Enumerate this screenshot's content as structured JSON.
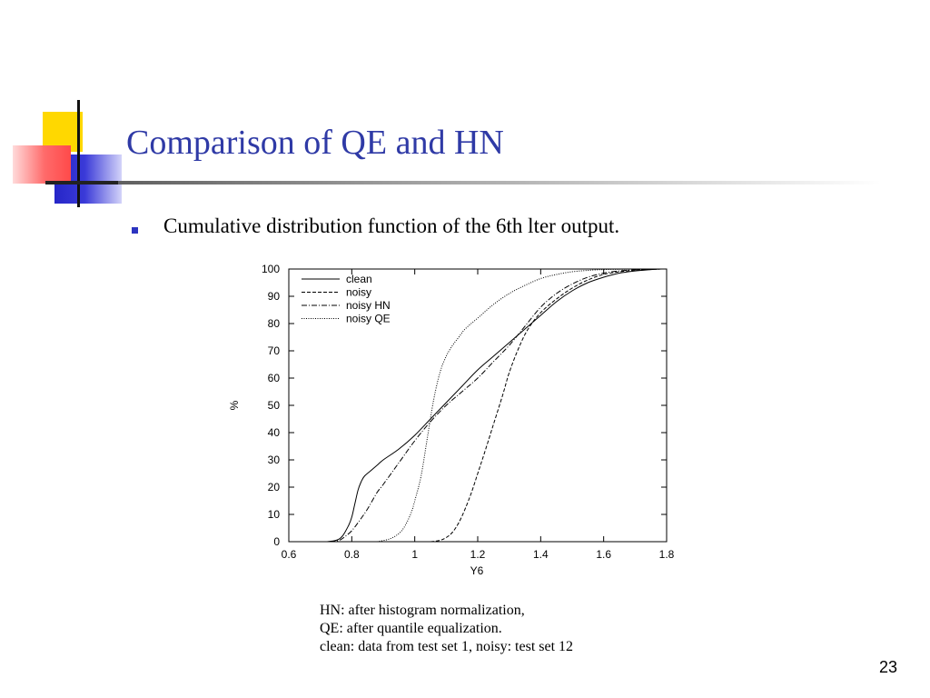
{
  "slide": {
    "title": "Comparison of QE and HN",
    "bullet": "Cumulative distribution function of the 6th lter output.",
    "caption": [
      "HN: after histogram normalization,",
      "QE: after quantile equalization.",
      "clean: data from test set 1, noisy: test set 12"
    ],
    "page_number": "23"
  },
  "colors": {
    "title": "#2f3aa6",
    "bullet": "#2c34c0",
    "deco_yellow": "#ffd800",
    "deco_blue": "#2626c8",
    "deco_red": "#ff4a4a",
    "lines": "#000000"
  },
  "chart_data": {
    "type": "line",
    "title": "",
    "xlabel": "Y6",
    "ylabel": "%",
    "xlim": [
      0.6,
      1.8
    ],
    "ylim": [
      0,
      100
    ],
    "xticks": [
      0.6,
      0.8,
      1,
      1.2,
      1.4,
      1.6,
      1.8
    ],
    "yticks": [
      0,
      10,
      20,
      30,
      40,
      50,
      60,
      70,
      80,
      90,
      100
    ],
    "grid": false,
    "legend_position": "top-left",
    "series": [
      {
        "name": "clean",
        "style": "solid",
        "x": [
          0.72,
          0.75,
          0.77,
          0.79,
          0.8,
          0.81,
          0.82,
          0.83,
          0.84,
          0.86,
          0.88,
          0.9,
          0.95,
          1.0,
          1.05,
          1.1,
          1.15,
          1.2,
          1.25,
          1.3,
          1.35,
          1.4,
          1.45,
          1.5,
          1.55,
          1.6,
          1.65,
          1.7,
          1.75,
          1.78
        ],
        "y": [
          0,
          0.5,
          2,
          6,
          9,
          14,
          19,
          22,
          24,
          26,
          28,
          30,
          34,
          39,
          45,
          51,
          57,
          63,
          68,
          73,
          78,
          83,
          88,
          92,
          95,
          97,
          98.5,
          99.3,
          99.8,
          100
        ]
      },
      {
        "name": "noisy",
        "style": "dashed",
        "x": [
          1.05,
          1.08,
          1.1,
          1.12,
          1.14,
          1.16,
          1.18,
          1.2,
          1.22,
          1.25,
          1.28,
          1.3,
          1.33,
          1.36,
          1.4,
          1.45,
          1.5,
          1.55,
          1.6,
          1.65,
          1.7,
          1.75,
          1.8
        ],
        "y": [
          0,
          0.5,
          1.5,
          3.5,
          7,
          12,
          18,
          25,
          32,
          43,
          54,
          62,
          71,
          78,
          84,
          89,
          93,
          96,
          98,
          99,
          99.6,
          99.9,
          100
        ]
      },
      {
        "name": "noisy HN",
        "style": "dash-dot",
        "x": [
          0.73,
          0.76,
          0.78,
          0.8,
          0.82,
          0.85,
          0.88,
          0.9,
          0.95,
          1.0,
          1.05,
          1.1,
          1.15,
          1.2,
          1.25,
          1.3,
          1.35,
          1.4,
          1.45,
          1.5,
          1.55,
          1.6,
          1.65,
          1.7,
          1.75,
          1.8
        ],
        "y": [
          0,
          0.5,
          2,
          4,
          7,
          12,
          18,
          21,
          29,
          37,
          44,
          50,
          55,
          60,
          66,
          72,
          79,
          86,
          91,
          94.5,
          97,
          98.5,
          99.3,
          99.7,
          99.9,
          100
        ]
      },
      {
        "name": "noisy QE",
        "style": "dotted",
        "x": [
          0.88,
          0.92,
          0.95,
          0.97,
          0.99,
          1.0,
          1.02,
          1.04,
          1.06,
          1.08,
          1.1,
          1.12,
          1.14,
          1.16,
          1.2,
          1.25,
          1.3,
          1.35,
          1.4,
          1.45,
          1.5,
          1.55,
          1.6,
          1.65,
          1.7
        ],
        "y": [
          0,
          1,
          3,
          6,
          11,
          15,
          24,
          38,
          52,
          62,
          68,
          72,
          75,
          78,
          82,
          87,
          91,
          94,
          96.5,
          98,
          99,
          99.5,
          99.8,
          99.9,
          100
        ]
      }
    ]
  }
}
